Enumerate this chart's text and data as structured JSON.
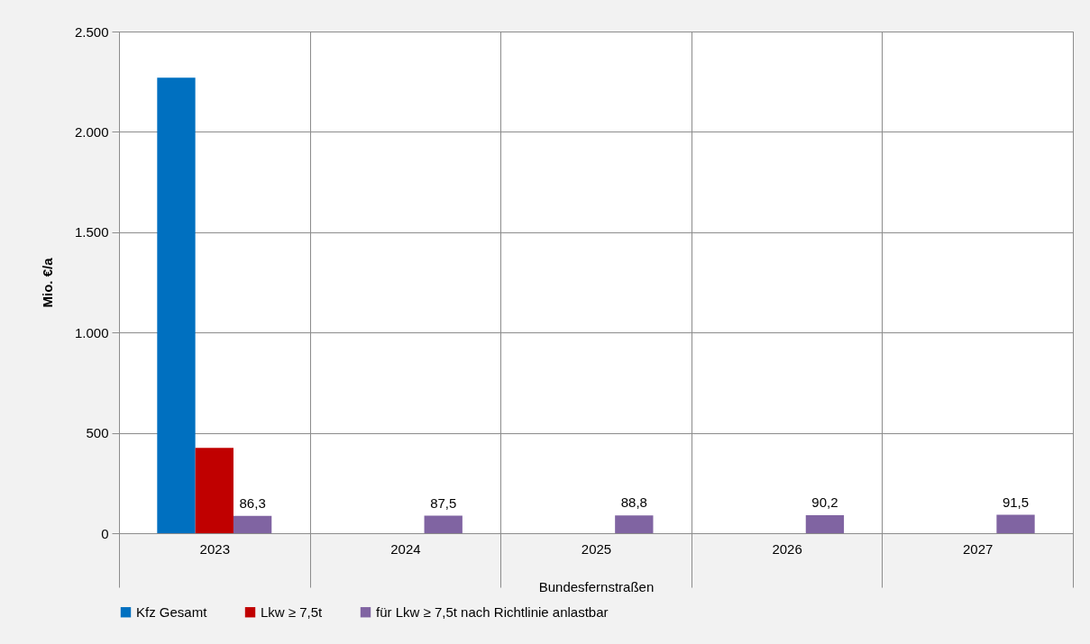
{
  "chart_data": {
    "type": "bar",
    "xlabel": "Bundesfernstraßen",
    "ylabel": "Mio. €/a",
    "categories": [
      "2023",
      "2024",
      "2025",
      "2026",
      "2027"
    ],
    "series": [
      {
        "name": "Kfz Gesamt",
        "color": "#0070c0",
        "values": [
          2270,
          null,
          null,
          null,
          null
        ]
      },
      {
        "name": "Lkw ≥ 7,5t",
        "color": "#c00000",
        "values": [
          425,
          null,
          null,
          null,
          null
        ]
      },
      {
        "name": "für Lkw ≥ 7,5t nach Richtlinie anlastbar",
        "color": "#8064a2",
        "values": [
          86.3,
          87.5,
          88.8,
          90.2,
          91.5
        ],
        "value_labels": [
          "86,3",
          "87,5",
          "88,8",
          "90,2",
          "91,5"
        ]
      }
    ],
    "ylim": [
      0,
      2500
    ],
    "yticks": [
      {
        "value": 0,
        "label": "0"
      },
      {
        "value": 500,
        "label": "500"
      },
      {
        "value": 1000,
        "label": "1.000"
      },
      {
        "value": 1500,
        "label": "1.500"
      },
      {
        "value": 2000,
        "label": "2.000"
      },
      {
        "value": 2500,
        "label": "2.500"
      }
    ],
    "grid": true,
    "legend": "bottom"
  }
}
